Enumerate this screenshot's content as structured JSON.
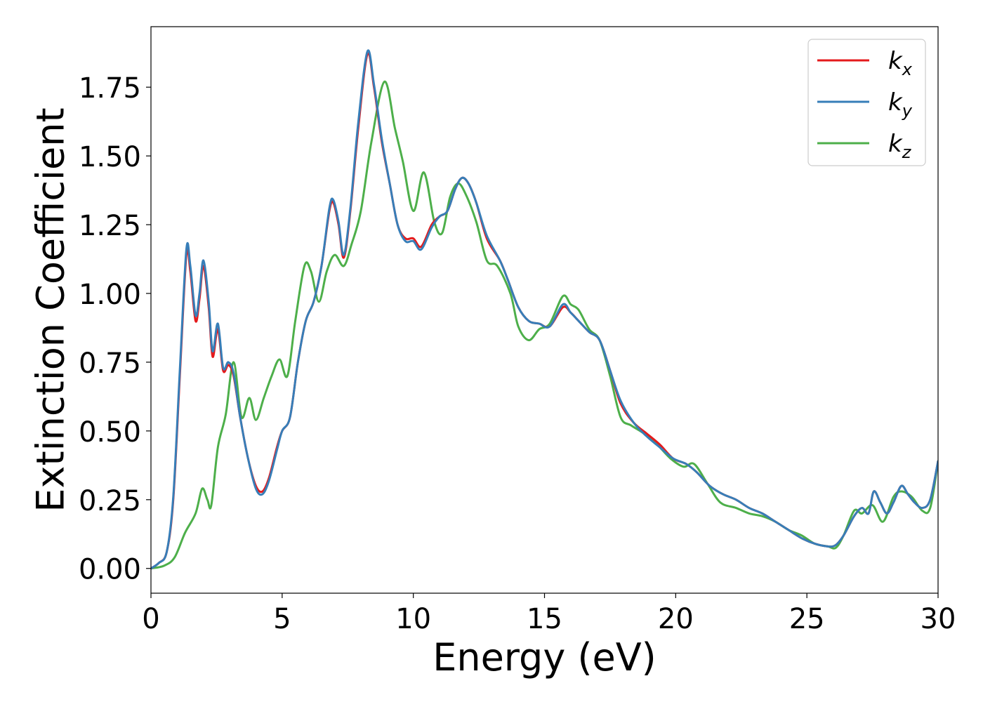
{
  "chart_data": {
    "type": "line",
    "title": "",
    "xlabel": "Energy (eV)",
    "ylabel": "Extinction Coefficient",
    "xlim": [
      0,
      30
    ],
    "ylim": [
      -0.09,
      1.97
    ],
    "xticks": [
      0,
      5,
      10,
      15,
      20,
      25,
      30
    ],
    "xtick_labels": [
      "0",
      "5",
      "10",
      "15",
      "20",
      "25",
      "30"
    ],
    "yticks": [
      0,
      0.25,
      0.5,
      0.75,
      1.0,
      1.25,
      1.5,
      1.75
    ],
    "ytick_labels": [
      "0.00",
      "0.25",
      "0.50",
      "0.75",
      "1.00",
      "1.25",
      "1.50",
      "1.75"
    ],
    "grid": false,
    "legend_position": "top-right",
    "series": [
      {
        "name": "k_x",
        "legend_base": "k",
        "legend_sub": "x",
        "color": "#e41a1c",
        "x": [
          0,
          0.3,
          0.6,
          0.85,
          1.1,
          1.35,
          1.5,
          1.7,
          1.85,
          2.0,
          2.2,
          2.35,
          2.55,
          2.75,
          2.95,
          3.15,
          3.4,
          3.7,
          4.0,
          4.25,
          4.5,
          4.8,
          5.0,
          5.3,
          5.6,
          5.9,
          6.2,
          6.5,
          6.8,
          6.95,
          7.15,
          7.35,
          7.6,
          7.9,
          8.25,
          8.5,
          8.8,
          9.1,
          9.4,
          9.7,
          10.0,
          10.3,
          10.7,
          11.0,
          11.3,
          11.6,
          11.85,
          12.1,
          12.4,
          12.8,
          13.3,
          13.6,
          14.0,
          14.4,
          14.8,
          15.2,
          15.7,
          16.0,
          16.3,
          16.7,
          17.1,
          17.5,
          17.9,
          18.4,
          18.9,
          19.4,
          19.9,
          20.4,
          20.8,
          21.3,
          21.8,
          22.3,
          22.8,
          23.3,
          23.8,
          24.3,
          24.8,
          25.3,
          25.8,
          26.1,
          26.4,
          26.8,
          27.1,
          27.35,
          27.55,
          27.8,
          28.05,
          28.3,
          28.6,
          28.85,
          29.1,
          29.4,
          29.7,
          30.0
        ],
        "y": [
          0.0,
          0.02,
          0.06,
          0.25,
          0.7,
          1.14,
          1.08,
          0.9,
          0.98,
          1.1,
          0.95,
          0.77,
          0.87,
          0.72,
          0.74,
          0.7,
          0.55,
          0.4,
          0.3,
          0.28,
          0.33,
          0.44,
          0.5,
          0.55,
          0.75,
          0.9,
          0.97,
          1.1,
          1.3,
          1.33,
          1.25,
          1.13,
          1.3,
          1.6,
          1.87,
          1.75,
          1.55,
          1.4,
          1.25,
          1.2,
          1.2,
          1.17,
          1.25,
          1.28,
          1.3,
          1.38,
          1.42,
          1.4,
          1.33,
          1.2,
          1.12,
          1.05,
          0.95,
          0.9,
          0.89,
          0.88,
          0.95,
          0.93,
          0.9,
          0.86,
          0.83,
          0.72,
          0.6,
          0.53,
          0.49,
          0.45,
          0.4,
          0.38,
          0.35,
          0.3,
          0.27,
          0.25,
          0.22,
          0.2,
          0.17,
          0.14,
          0.11,
          0.09,
          0.08,
          0.085,
          0.12,
          0.19,
          0.22,
          0.2,
          0.28,
          0.24,
          0.2,
          0.24,
          0.3,
          0.27,
          0.24,
          0.22,
          0.25,
          0.39
        ]
      },
      {
        "name": "k_y",
        "legend_base": "k",
        "legend_sub": "y",
        "color": "#377eb8",
        "x": [
          0,
          0.3,
          0.6,
          0.85,
          1.1,
          1.35,
          1.5,
          1.7,
          1.85,
          2.0,
          2.2,
          2.35,
          2.55,
          2.75,
          2.95,
          3.15,
          3.4,
          3.7,
          4.0,
          4.25,
          4.5,
          4.8,
          5.0,
          5.3,
          5.6,
          5.9,
          6.2,
          6.5,
          6.8,
          6.95,
          7.15,
          7.35,
          7.6,
          7.9,
          8.25,
          8.5,
          8.8,
          9.1,
          9.4,
          9.7,
          10.0,
          10.3,
          10.7,
          11.0,
          11.3,
          11.6,
          11.85,
          12.1,
          12.4,
          12.8,
          13.3,
          13.6,
          14.0,
          14.4,
          14.8,
          15.2,
          15.7,
          16.0,
          16.3,
          16.7,
          17.1,
          17.5,
          17.9,
          18.4,
          18.9,
          19.4,
          19.9,
          20.4,
          20.8,
          21.3,
          21.8,
          22.3,
          22.8,
          23.3,
          23.8,
          24.3,
          24.8,
          25.3,
          25.8,
          26.1,
          26.4,
          26.8,
          27.1,
          27.35,
          27.55,
          27.8,
          28.05,
          28.3,
          28.6,
          28.85,
          29.1,
          29.4,
          29.7,
          30.0
        ],
        "y": [
          0.0,
          0.02,
          0.06,
          0.26,
          0.72,
          1.16,
          1.1,
          0.92,
          1.0,
          1.12,
          0.97,
          0.79,
          0.89,
          0.73,
          0.75,
          0.71,
          0.55,
          0.4,
          0.29,
          0.27,
          0.32,
          0.43,
          0.5,
          0.55,
          0.75,
          0.9,
          0.97,
          1.1,
          1.31,
          1.34,
          1.26,
          1.14,
          1.31,
          1.62,
          1.88,
          1.76,
          1.56,
          1.4,
          1.25,
          1.19,
          1.19,
          1.16,
          1.24,
          1.28,
          1.3,
          1.38,
          1.42,
          1.4,
          1.33,
          1.21,
          1.12,
          1.05,
          0.95,
          0.9,
          0.89,
          0.88,
          0.96,
          0.93,
          0.9,
          0.86,
          0.83,
          0.72,
          0.61,
          0.53,
          0.48,
          0.44,
          0.4,
          0.38,
          0.35,
          0.3,
          0.27,
          0.25,
          0.22,
          0.2,
          0.17,
          0.14,
          0.11,
          0.09,
          0.08,
          0.085,
          0.12,
          0.19,
          0.22,
          0.2,
          0.28,
          0.24,
          0.2,
          0.24,
          0.3,
          0.27,
          0.24,
          0.22,
          0.25,
          0.39
        ]
      },
      {
        "name": "k_z",
        "legend_base": "k",
        "legend_sub": "z",
        "color": "#4daf4a",
        "x": [
          0,
          0.5,
          0.9,
          1.3,
          1.7,
          1.95,
          2.15,
          2.3,
          2.55,
          2.85,
          3.15,
          3.45,
          3.75,
          4.0,
          4.3,
          4.6,
          4.9,
          5.2,
          5.5,
          5.85,
          6.1,
          6.4,
          6.7,
          7.0,
          7.35,
          7.65,
          8.0,
          8.4,
          8.9,
          9.3,
          9.6,
          10.0,
          10.4,
          10.8,
          11.1,
          11.4,
          11.7,
          12.0,
          12.4,
          12.8,
          13.2,
          13.7,
          14.0,
          14.4,
          14.8,
          15.2,
          15.7,
          16.0,
          16.3,
          16.7,
          17.1,
          17.5,
          17.9,
          18.3,
          18.8,
          19.3,
          19.8,
          20.3,
          20.7,
          21.2,
          21.7,
          22.3,
          22.8,
          23.3,
          23.8,
          24.3,
          24.8,
          25.3,
          25.8,
          26.1,
          26.4,
          26.8,
          27.1,
          27.5,
          27.9,
          28.3,
          28.6,
          29.0,
          29.4,
          29.7,
          30.0
        ],
        "y": [
          0.0,
          0.01,
          0.04,
          0.13,
          0.2,
          0.29,
          0.25,
          0.23,
          0.44,
          0.56,
          0.75,
          0.55,
          0.62,
          0.54,
          0.62,
          0.7,
          0.76,
          0.7,
          0.9,
          1.1,
          1.08,
          0.97,
          1.08,
          1.14,
          1.1,
          1.18,
          1.3,
          1.55,
          1.77,
          1.6,
          1.48,
          1.3,
          1.44,
          1.26,
          1.22,
          1.35,
          1.4,
          1.36,
          1.26,
          1.12,
          1.1,
          1.0,
          0.88,
          0.83,
          0.87,
          0.89,
          0.99,
          0.96,
          0.94,
          0.87,
          0.83,
          0.7,
          0.55,
          0.52,
          0.49,
          0.45,
          0.4,
          0.37,
          0.38,
          0.31,
          0.24,
          0.22,
          0.2,
          0.19,
          0.17,
          0.14,
          0.12,
          0.09,
          0.08,
          0.075,
          0.12,
          0.21,
          0.2,
          0.23,
          0.17,
          0.26,
          0.28,
          0.26,
          0.21,
          0.22,
          0.39
        ]
      }
    ]
  }
}
